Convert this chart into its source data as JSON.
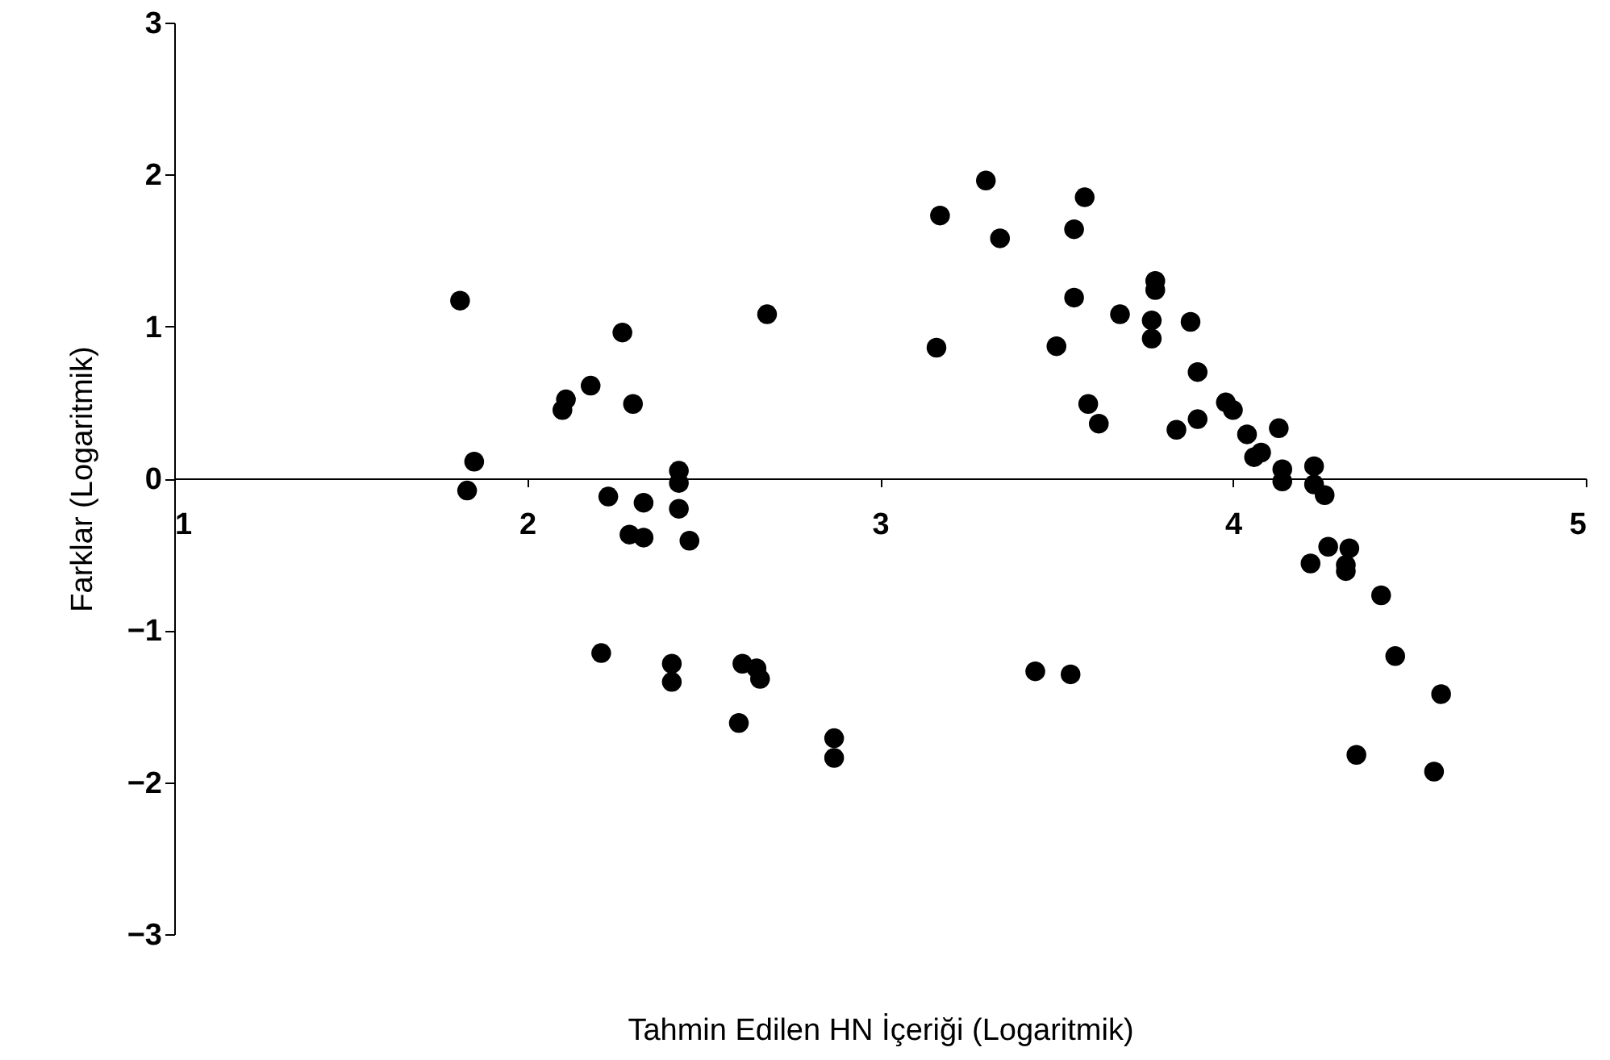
{
  "chart_data": {
    "type": "scatter",
    "xlabel": "Tahmin Edilen HN İçeriği (Logaritmik)",
    "ylabel": "Farklar (Logaritmik)",
    "xlim": [
      1,
      5
    ],
    "xticks": [
      1,
      2,
      3,
      4,
      5
    ],
    "ylim": [
      -3,
      3
    ],
    "yticks": [
      -3,
      -2,
      -1,
      0,
      1,
      2,
      3
    ],
    "grid": false,
    "marker": "circle",
    "series": [
      {
        "color": "#000000",
        "x": [
          1.81,
          1.83,
          1.85,
          2.1,
          2.11,
          2.18,
          2.27,
          2.3,
          2.23,
          2.29,
          2.33,
          2.33,
          2.43,
          2.43,
          2.43,
          2.46,
          2.21,
          2.41,
          2.41,
          2.61,
          2.65,
          2.66,
          2.6,
          2.68,
          2.87,
          2.87,
          3.17,
          3.16,
          3.3,
          3.34,
          3.5,
          3.44,
          3.54,
          3.55,
          3.58,
          3.55,
          3.59,
          3.62,
          3.68,
          3.77,
          3.77,
          3.78,
          3.78,
          3.84,
          3.88,
          3.9,
          3.9,
          3.98,
          4.0,
          4.04,
          4.06,
          4.08,
          4.13,
          4.14,
          4.14,
          4.23,
          4.23,
          4.26,
          4.22,
          4.27,
          4.33,
          4.32,
          4.32,
          4.42,
          4.46,
          4.59,
          4.35,
          4.57
        ],
        "values": [
          1.17,
          -0.08,
          0.11,
          0.45,
          0.52,
          0.61,
          0.96,
          0.49,
          -0.12,
          -0.37,
          -0.39,
          -0.16,
          0.05,
          -0.03,
          -0.2,
          -0.41,
          -1.15,
          -1.22,
          -1.34,
          -1.22,
          -1.25,
          -1.32,
          -1.61,
          1.08,
          -1.71,
          -1.84,
          1.73,
          0.86,
          1.96,
          1.58,
          0.87,
          -1.27,
          -1.29,
          1.64,
          1.85,
          1.19,
          0.49,
          0.36,
          1.08,
          0.92,
          1.04,
          1.3,
          1.24,
          0.32,
          1.03,
          0.7,
          0.39,
          0.5,
          0.45,
          0.29,
          0.14,
          0.17,
          0.33,
          0.06,
          -0.02,
          0.08,
          -0.04,
          -0.11,
          -0.56,
          -0.45,
          -0.46,
          -0.57,
          -0.61,
          -0.77,
          -1.17,
          -1.42,
          -1.82,
          -1.93
        ]
      }
    ]
  }
}
